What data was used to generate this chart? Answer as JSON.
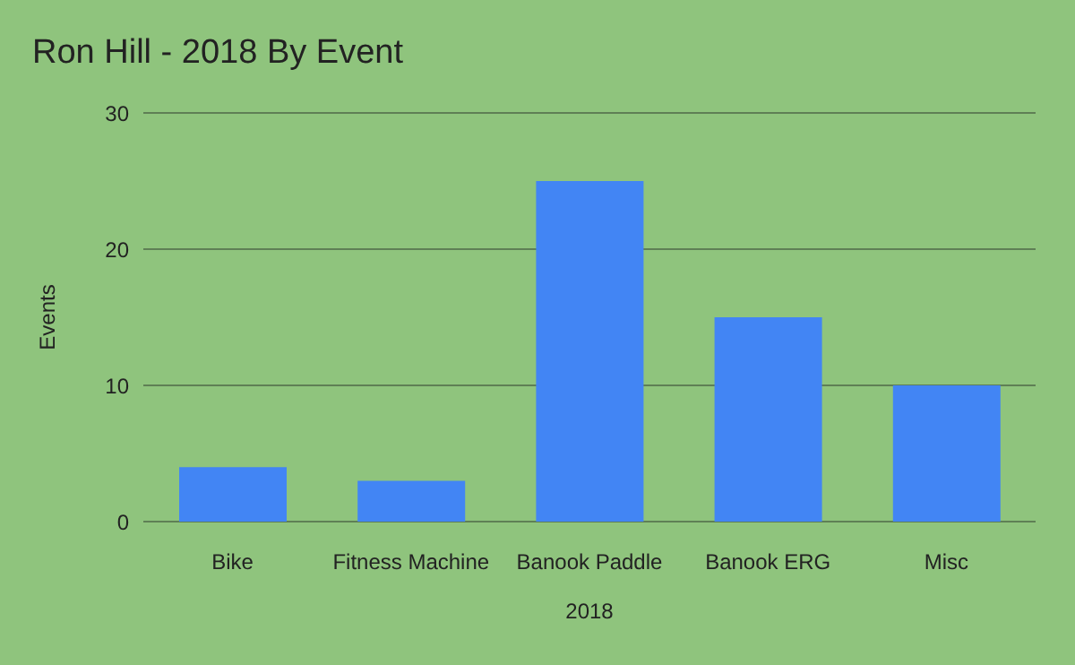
{
  "chart_data": {
    "type": "bar",
    "title": "Ron Hill - 2018 By Event",
    "xlabel": "2018",
    "ylabel": "Events",
    "categories": [
      "Bike",
      "Fitness Machine",
      "Banook Paddle",
      "Banook ERG",
      "Misc"
    ],
    "values": [
      4,
      3,
      25,
      15,
      10
    ],
    "color": "#4285f4",
    "ylim": [
      0,
      30
    ],
    "yticks": [
      0,
      10,
      20,
      30
    ],
    "grid": "y"
  }
}
